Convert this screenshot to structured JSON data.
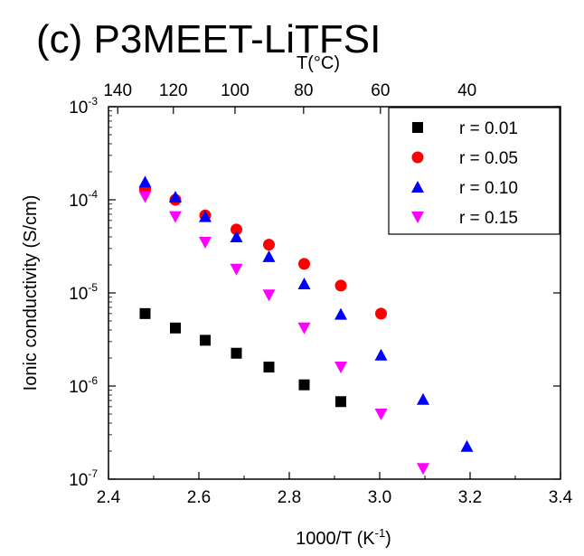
{
  "chart_data": {
    "type": "scatter",
    "title": "(c) P3MEET-LiTFSI",
    "xlabel": "1000/T (K",
    "xlabel_sup": "-1",
    "xlabel_end": ")",
    "ylabel": "Ionic conductivity (S/cm)",
    "top_axis_label": "T(°C)",
    "xlim": [
      2.4,
      3.4
    ],
    "ylim": [
      1e-07,
      0.001
    ],
    "y_scale": "log",
    "x_ticks": [
      2.4,
      2.6,
      2.8,
      3.0,
      3.2,
      3.4
    ],
    "x_tick_labels": [
      "2.4",
      "2.6",
      "2.8",
      "3.0",
      "3.2",
      "3.4"
    ],
    "y_ticks": [
      {
        "base": "10",
        "exp": "-7",
        "value": 1e-07
      },
      {
        "base": "10",
        "exp": "-6",
        "value": 1e-06
      },
      {
        "base": "10",
        "exp": "-5",
        "value": 1e-05
      },
      {
        "base": "10",
        "exp": "-4",
        "value": 0.0001
      },
      {
        "base": "10",
        "exp": "-3",
        "value": 0.001
      }
    ],
    "top_ticks": [
      {
        "label": "140",
        "celsius": 140
      },
      {
        "label": "120",
        "celsius": 120
      },
      {
        "label": "100",
        "celsius": 100
      },
      {
        "label": "80",
        "celsius": 80
      },
      {
        "label": "60",
        "celsius": 60
      },
      {
        "label": "40",
        "celsius": 40
      }
    ],
    "grid": false,
    "legend_position": "top-right",
    "series": [
      {
        "name": "r = 0.01",
        "marker": "square",
        "color": "#000000",
        "x": [
          2.481,
          2.548,
          2.614,
          2.683,
          2.755,
          2.833,
          2.914
        ],
        "y": [
          6e-06,
          4.2e-06,
          3.1e-06,
          2.25e-06,
          1.6e-06,
          1.03e-06,
          6.8e-07
        ]
      },
      {
        "name": "r = 0.05",
        "marker": "circle",
        "color": "#ff0000",
        "x": [
          2.481,
          2.548,
          2.614,
          2.683,
          2.755,
          2.833,
          2.914,
          3.003
        ],
        "y": [
          0.00013,
          0.0001,
          6.8e-05,
          4.8e-05,
          3.3e-05,
          2.05e-05,
          1.2e-05,
          6e-06
        ]
      },
      {
        "name": "r = 0.10",
        "marker": "triangle-up",
        "color": "#0000ff",
        "x": [
          2.481,
          2.548,
          2.614,
          2.683,
          2.755,
          2.833,
          2.914,
          3.003,
          3.096,
          3.193
        ],
        "y": [
          0.000155,
          0.000107,
          6.6e-05,
          4e-05,
          2.45e-05,
          1.25e-05,
          5.9e-06,
          2.15e-06,
          7.2e-07,
          2.25e-07
        ]
      },
      {
        "name": "r = 0.15",
        "marker": "triangle-down",
        "color": "#ff00ff",
        "x": [
          2.481,
          2.548,
          2.614,
          2.683,
          2.755,
          2.833,
          2.914,
          3.003,
          3.096
        ],
        "y": [
          0.000108,
          6.6e-05,
          3.5e-05,
          1.8e-05,
          9.5e-06,
          4.2e-06,
          1.6e-06,
          5e-07,
          1.3e-07
        ]
      }
    ]
  }
}
